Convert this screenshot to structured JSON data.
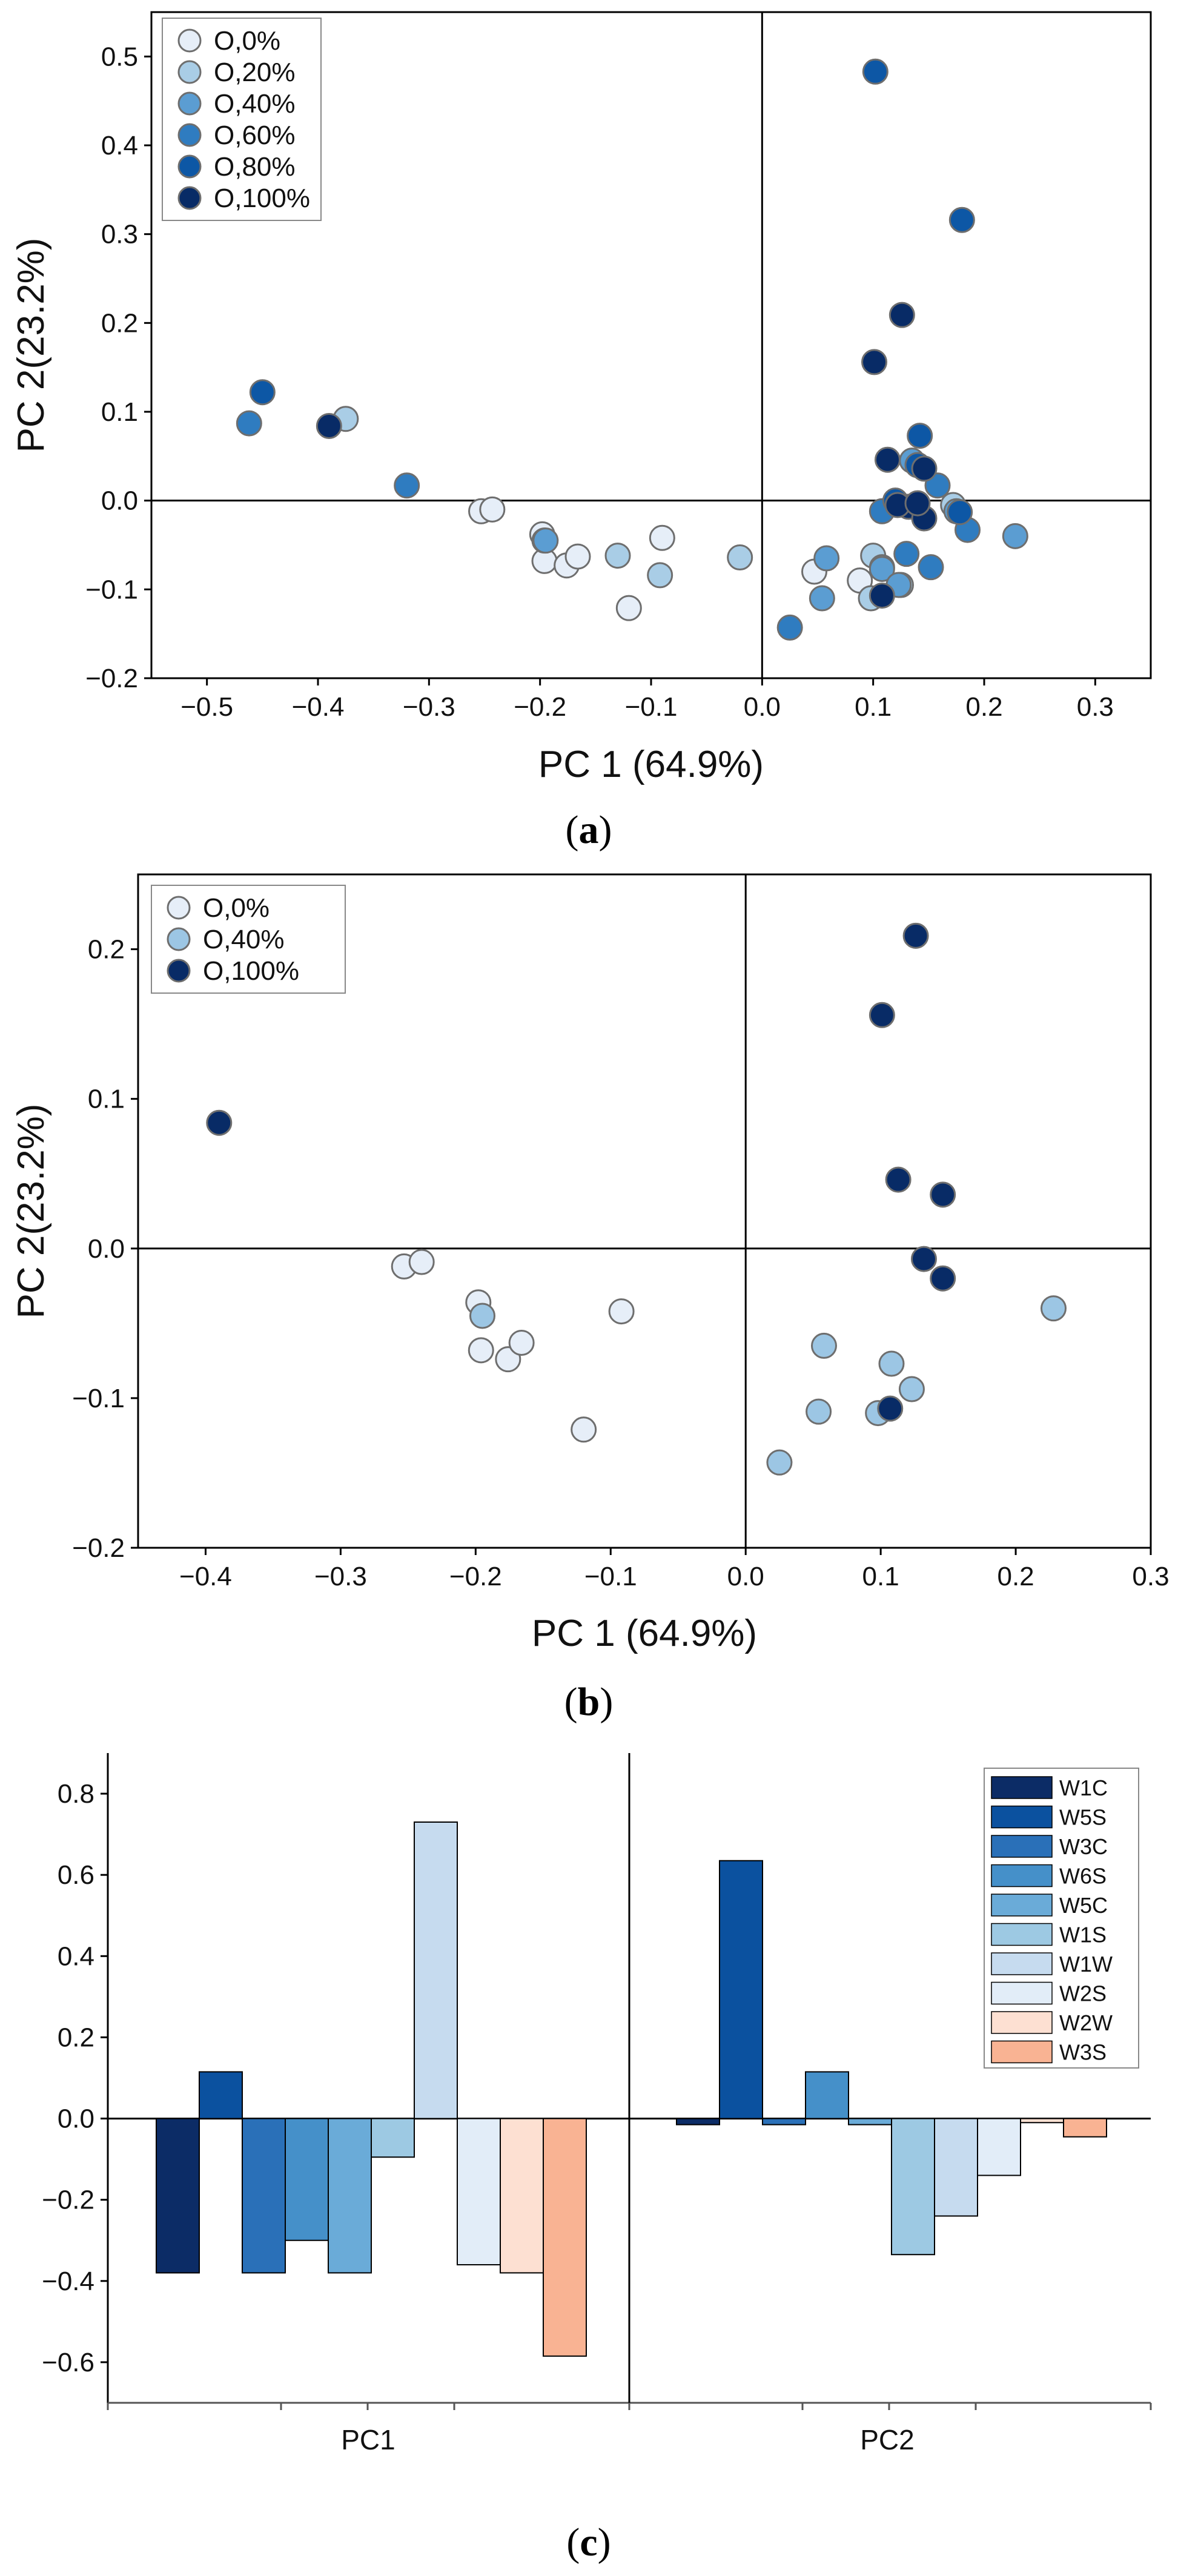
{
  "chart_data": [
    {
      "type": "scatter",
      "panel_label": "a",
      "caption_open": "(",
      "caption_close": ")",
      "xlabel": "PC 1 (64.9%)",
      "ylabel": "PC 2(23.2%)",
      "xlim": [
        -0.55,
        0.35
      ],
      "ylim": [
        -0.2,
        0.55
      ],
      "xticks": [
        -0.5,
        -0.4,
        -0.3,
        -0.2,
        -0.1,
        0.0,
        0.1,
        0.2,
        0.3
      ],
      "xtick_labels": [
        "−0.5",
        "−0.4",
        "−0.3",
        "−0.2",
        "−0.1",
        "0.0",
        "0.1",
        "0.2",
        "0.3"
      ],
      "yticks": [
        -0.2,
        -0.1,
        0.0,
        0.1,
        0.2,
        0.3,
        0.4,
        0.5
      ],
      "ytick_labels": [
        "−0.2",
        "−0.1",
        "0.0",
        "0.1",
        "0.2",
        "0.3",
        "0.4",
        "0.5"
      ],
      "legend_position": "top-left",
      "reference_lines": {
        "x": 0,
        "y": 0
      },
      "series": [
        {
          "name": "O,0%",
          "color": "#e6eef8",
          "points": [
            [
              -0.253,
              -0.012
            ],
            [
              -0.243,
              -0.01
            ],
            [
              -0.198,
              -0.038
            ],
            [
              -0.196,
              -0.068
            ],
            [
              -0.176,
              -0.073
            ],
            [
              -0.166,
              -0.063
            ],
            [
              -0.12,
              -0.121
            ],
            [
              -0.09,
              -0.042
            ],
            [
              0.047,
              -0.08
            ],
            [
              0.088,
              -0.09
            ]
          ]
        },
        {
          "name": "O,20%",
          "color": "#a9cde6",
          "points": [
            [
              -0.375,
              0.092
            ],
            [
              -0.196,
              -0.045
            ],
            [
              -0.13,
              -0.062
            ],
            [
              -0.092,
              -0.084
            ],
            [
              -0.02,
              -0.064
            ],
            [
              0.1,
              -0.062
            ],
            [
              0.098,
              -0.11
            ],
            [
              0.125,
              -0.095
            ],
            [
              0.172,
              -0.005
            ],
            [
              0.108,
              -0.075
            ]
          ]
        },
        {
          "name": "O,40%",
          "color": "#5b9dd2",
          "points": [
            [
              -0.195,
              -0.045
            ],
            [
              0.058,
              -0.065
            ],
            [
              0.054,
              -0.11
            ],
            [
              0.108,
              -0.077
            ],
            [
              0.123,
              -0.095
            ],
            [
              0.228,
              -0.04
            ],
            [
              0.135,
              0.045
            ],
            [
              0.175,
              -0.012
            ]
          ]
        },
        {
          "name": "O,60%",
          "color": "#2f7cc0",
          "points": [
            [
              -0.462,
              0.087
            ],
            [
              -0.32,
              0.017
            ],
            [
              0.025,
              -0.143
            ],
            [
              0.13,
              -0.06
            ],
            [
              0.152,
              -0.075
            ],
            [
              0.185,
              -0.033
            ],
            [
              0.158,
              0.017
            ],
            [
              0.108,
              -0.012
            ]
          ]
        },
        {
          "name": "O,80%",
          "color": "#0d57a5",
          "points": [
            [
              -0.45,
              0.122
            ],
            [
              0.102,
              0.483
            ],
            [
              0.18,
              0.316
            ],
            [
              0.142,
              0.073
            ],
            [
              0.14,
              0.04
            ],
            [
              0.12,
              0.0
            ],
            [
              0.178,
              -0.013
            ]
          ]
        },
        {
          "name": "O,100%",
          "color": "#082b66",
          "points": [
            [
              -0.39,
              0.084
            ],
            [
              0.126,
              0.209
            ],
            [
              0.101,
              0.156
            ],
            [
              0.113,
              0.046
            ],
            [
              0.146,
              0.036
            ],
            [
              0.132,
              -0.007
            ],
            [
              0.146,
              -0.02
            ],
            [
              0.108,
              -0.107
            ],
            [
              0.122,
              -0.005
            ],
            [
              0.14,
              -0.003
            ]
          ]
        }
      ]
    },
    {
      "type": "scatter",
      "panel_label": "b",
      "caption_open": "(",
      "caption_close": ")",
      "xlabel": "PC 1 (64.9%)",
      "ylabel": "PC 2(23.2%)",
      "xlim": [
        -0.45,
        0.3
      ],
      "ylim": [
        -0.2,
        0.25
      ],
      "xticks": [
        -0.4,
        -0.3,
        -0.2,
        -0.1,
        0.0,
        0.1,
        0.2,
        0.3
      ],
      "xtick_labels": [
        "−0.4",
        "−0.3",
        "−0.2",
        "−0.1",
        "0.0",
        "0.1",
        "0.2",
        "0.3"
      ],
      "yticks": [
        -0.2,
        -0.1,
        0.0,
        0.1,
        0.2
      ],
      "ytick_labels": [
        "−0.2",
        "−0.1",
        "0.0",
        "0.1",
        "0.2"
      ],
      "legend_position": "top-left",
      "reference_lines": {
        "x": 0,
        "y": 0
      },
      "series": [
        {
          "name": "O,0%",
          "color": "#e6eef8",
          "points": [
            [
              -0.253,
              -0.012
            ],
            [
              -0.24,
              -0.009
            ],
            [
              -0.198,
              -0.036
            ],
            [
              -0.196,
              -0.068
            ],
            [
              -0.176,
              -0.074
            ],
            [
              -0.166,
              -0.063
            ],
            [
              -0.12,
              -0.121
            ],
            [
              -0.092,
              -0.042
            ]
          ]
        },
        {
          "name": "O,40%",
          "color": "#9cc6e4",
          "points": [
            [
              -0.195,
              -0.045
            ],
            [
              0.058,
              -0.065
            ],
            [
              0.054,
              -0.109
            ],
            [
              0.025,
              -0.143
            ],
            [
              0.108,
              -0.077
            ],
            [
              0.098,
              -0.11
            ],
            [
              0.123,
              -0.094
            ],
            [
              0.228,
              -0.04
            ]
          ]
        },
        {
          "name": "O,100%",
          "color": "#082b66",
          "points": [
            [
              -0.39,
              0.084
            ],
            [
              0.126,
              0.209
            ],
            [
              0.101,
              0.156
            ],
            [
              0.113,
              0.046
            ],
            [
              0.146,
              0.036
            ],
            [
              0.132,
              -0.007
            ],
            [
              0.146,
              -0.02
            ],
            [
              0.107,
              -0.107
            ]
          ]
        }
      ]
    },
    {
      "type": "bar",
      "panel_label": "c",
      "caption_open": "(",
      "caption_close": ")",
      "categories": [
        "PC1",
        "PC2"
      ],
      "ylim": [
        -0.7,
        0.9
      ],
      "yticks": [
        -0.6,
        -0.4,
        -0.2,
        0.0,
        0.2,
        0.4,
        0.6,
        0.8
      ],
      "ytick_labels": [
        "−0.6",
        "−0.4",
        "−0.2",
        "0.0",
        "0.2",
        "0.4",
        "0.6",
        "0.8"
      ],
      "legend_position": "top-right",
      "series": [
        {
          "name": "W1C",
          "color": "#0c2c66",
          "values": [
            -0.38,
            -0.015
          ]
        },
        {
          "name": "W5S",
          "color": "#0b519f",
          "values": [
            0.115,
            0.635
          ]
        },
        {
          "name": "W3C",
          "color": "#2a70b8",
          "values": [
            -0.38,
            -0.015
          ]
        },
        {
          "name": "W6S",
          "color": "#4590c9",
          "values": [
            -0.3,
            0.115
          ]
        },
        {
          "name": "W5C",
          "color": "#6aabd8",
          "values": [
            -0.38,
            -0.015
          ]
        },
        {
          "name": "W1S",
          "color": "#9dc9e3",
          "values": [
            -0.095,
            -0.335
          ]
        },
        {
          "name": "W1W",
          "color": "#c6dbef",
          "values": [
            0.73,
            -0.24
          ]
        },
        {
          "name": "W2S",
          "color": "#e2edf8",
          "values": [
            -0.36,
            -0.14
          ]
        },
        {
          "name": "W2W",
          "color": "#fde0d2",
          "values": [
            -0.38,
            -0.01
          ]
        },
        {
          "name": "W3S",
          "color": "#f9b393",
          "values": [
            -0.585,
            -0.045
          ]
        }
      ]
    }
  ]
}
